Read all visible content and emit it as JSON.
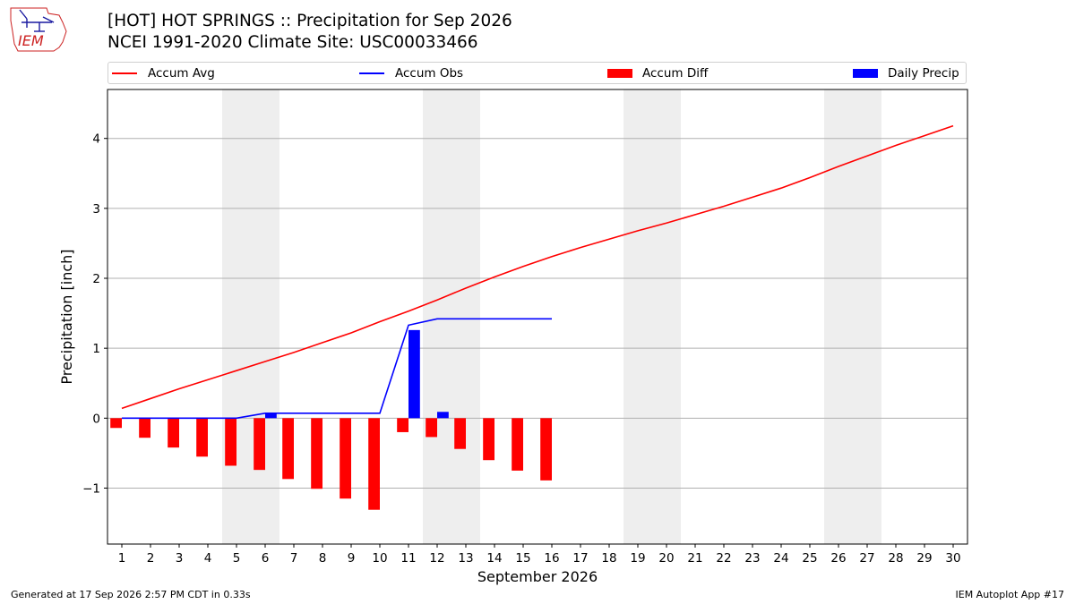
{
  "header": {
    "title_line1": "[HOT] HOT SPRINGS :: Precipitation for Sep 2026",
    "title_line2": "NCEI 1991-2020 Climate Site: USC00033466",
    "logo_text": "IEM"
  },
  "legend": [
    {
      "label": "Accum Avg",
      "color": "#ff0000",
      "kind": "line"
    },
    {
      "label": "Accum Obs",
      "color": "#0000ff",
      "kind": "line"
    },
    {
      "label": "Accum Diff",
      "color": "#ff0000",
      "kind": "box"
    },
    {
      "label": "Daily Precip",
      "color": "#0000ff",
      "kind": "box"
    }
  ],
  "footer": {
    "generated": "Generated at 17 Sep 2026 2:57 PM CDT in 0.33s",
    "app": "IEM Autoplot App #17"
  },
  "chart_data": {
    "type": "bar",
    "title": "[HOT] HOT SPRINGS :: Precipitation for Sep 2026",
    "xlabel": "September 2026",
    "ylabel": "Precipitation [inch]",
    "xlim": [
      0.5,
      30.5
    ],
    "ylim": [
      -1.8,
      4.7
    ],
    "yticks": [
      -1,
      0,
      1,
      2,
      3,
      4
    ],
    "ytick_labels": [
      "−1",
      "0",
      "1",
      "2",
      "3",
      "4"
    ],
    "days": [
      1,
      2,
      3,
      4,
      5,
      6,
      7,
      8,
      9,
      10,
      11,
      12,
      13,
      14,
      15,
      16,
      17,
      18,
      19,
      20,
      21,
      22,
      23,
      24,
      25,
      26,
      27,
      28,
      29,
      30
    ],
    "weekend_bands": [
      [
        4.5,
        6.5
      ],
      [
        11.5,
        13.5
      ],
      [
        18.5,
        20.5
      ],
      [
        25.5,
        27.5
      ]
    ],
    "grid": "horizontal",
    "series": [
      {
        "name": "Accum Avg",
        "kind": "line",
        "color": "#ff0000",
        "x": [
          1,
          2,
          3,
          4,
          5,
          6,
          7,
          8,
          9,
          10,
          11,
          12,
          13,
          14,
          15,
          16,
          17,
          18,
          19,
          20,
          21,
          22,
          23,
          24,
          25,
          26,
          27,
          28,
          29,
          30
        ],
        "values": [
          0.14,
          0.28,
          0.42,
          0.55,
          0.68,
          0.81,
          0.94,
          1.08,
          1.22,
          1.38,
          1.53,
          1.69,
          1.86,
          2.02,
          2.17,
          2.31,
          2.44,
          2.56,
          2.68,
          2.79,
          2.91,
          3.03,
          3.16,
          3.29,
          3.44,
          3.6,
          3.75,
          3.9,
          4.04,
          4.18
        ]
      },
      {
        "name": "Accum Obs",
        "kind": "line",
        "color": "#0000ff",
        "x": [
          1,
          2,
          3,
          4,
          5,
          6,
          7,
          8,
          9,
          10,
          11,
          12,
          13,
          14,
          15,
          16
        ],
        "values": [
          0.0,
          0.0,
          0.0,
          0.0,
          0.0,
          0.07,
          0.07,
          0.07,
          0.07,
          0.07,
          1.33,
          1.42,
          1.42,
          1.42,
          1.42,
          1.42
        ]
      },
      {
        "name": "Accum Diff",
        "kind": "bar",
        "color": "#ff0000",
        "offset": -0.2,
        "width": 0.4,
        "x": [
          1,
          2,
          3,
          4,
          5,
          6,
          7,
          8,
          9,
          10,
          11,
          12,
          13,
          14,
          15,
          16
        ],
        "values": [
          -0.14,
          -0.28,
          -0.42,
          -0.55,
          -0.68,
          -0.74,
          -0.87,
          -1.01,
          -1.15,
          -1.31,
          -0.2,
          -0.27,
          -0.44,
          -0.6,
          -0.75,
          -0.89
        ]
      },
      {
        "name": "Daily Precip",
        "kind": "bar",
        "color": "#0000ff",
        "offset": 0.2,
        "width": 0.4,
        "x": [
          1,
          2,
          3,
          4,
          5,
          6,
          7,
          8,
          9,
          10,
          11,
          12,
          13,
          14,
          15,
          16
        ],
        "values": [
          0,
          0,
          0,
          0,
          0,
          0.07,
          0,
          0,
          0,
          0,
          1.26,
          0.09,
          0,
          0,
          0,
          0
        ]
      }
    ]
  }
}
